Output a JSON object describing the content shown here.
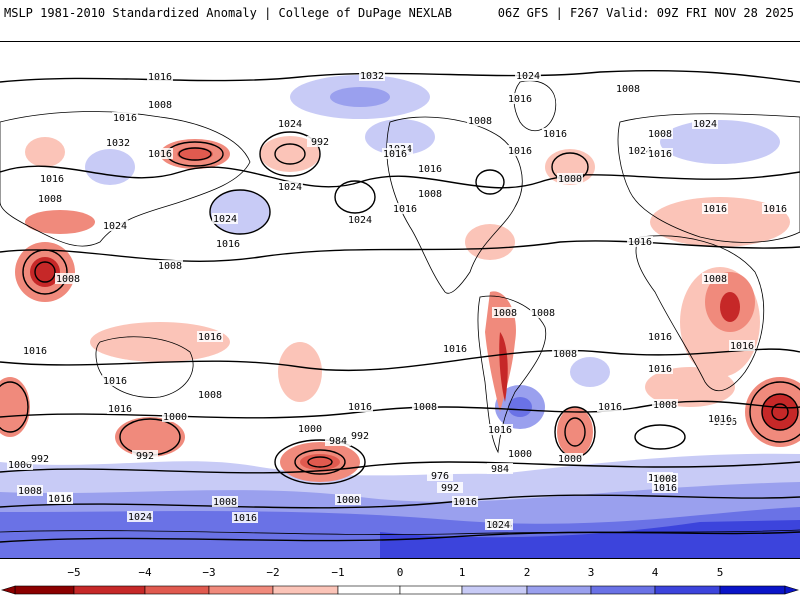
{
  "header": {
    "title_left": "MSLP 1981-2010 Standardized Anomaly | College of DuPage NEXLAB",
    "title_right": "06Z GFS | F267 Valid: 09Z FRI NOV 28 2025"
  },
  "map": {
    "description_name": "global-mslp-anomaly-map",
    "isobar_labels": [
      "1016",
      "1032",
      "1024",
      "1008",
      "1016",
      "1008",
      "1016",
      "1024",
      "1008",
      "1016",
      "1032",
      "1024",
      "1016",
      "1008",
      "992",
      "1016",
      "1024",
      "1024",
      "1016",
      "1024",
      "1016",
      "1016",
      "1008",
      "1016",
      "1008",
      "1000",
      "1024",
      "1016",
      "1016",
      "1016",
      "1024",
      "1016",
      "1024",
      "1016",
      "1008",
      "1008",
      "1016",
      "1008",
      "1008",
      "1016",
      "1016",
      "1016",
      "1016",
      "1008",
      "1008",
      "1016",
      "1016",
      "1008",
      "1016",
      "1016",
      "1000",
      "1000",
      "992",
      "992",
      "984",
      "1000",
      "1008",
      "976",
      "992",
      "984",
      "1016",
      "1000",
      "1000",
      "992",
      "1008",
      "1016",
      "1008",
      "1016",
      "1024",
      "1008",
      "1016",
      "1008",
      "1016",
      "1024",
      "1016",
      "1016",
      "1008",
      "1016",
      "1000",
      "1024",
      "1016"
    ]
  },
  "colorbar": {
    "ticks": [
      "−5",
      "−4",
      "−3",
      "−2",
      "−1",
      "0",
      "1",
      "2",
      "3",
      "4",
      "5"
    ],
    "colors": {
      "neg5": "#8b0000",
      "neg4": "#c62828",
      "neg3": "#e05a4f",
      "neg2": "#f08a7c",
      "neg1": "#fbc4b8",
      "zero": "#ffffff",
      "pos1": "#c8cbf6",
      "pos2": "#9aa0ee",
      "pos3": "#6a72e6",
      "pos4": "#3c44dc",
      "pos5": "#0a14c8"
    }
  }
}
